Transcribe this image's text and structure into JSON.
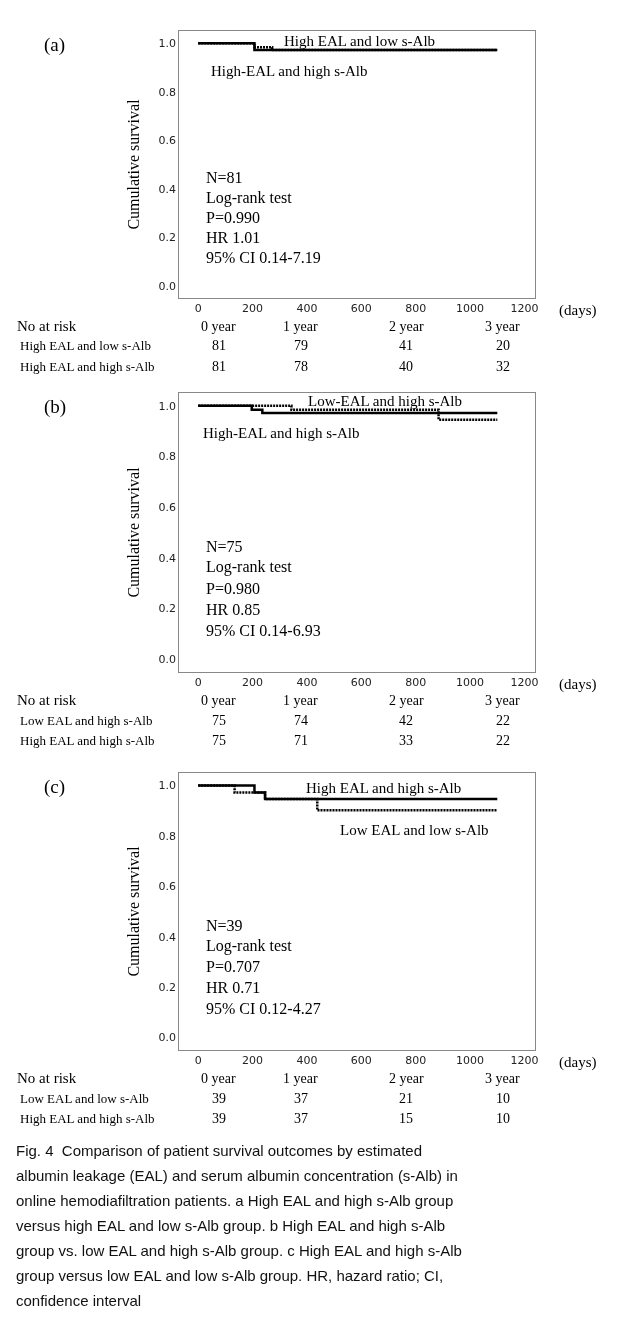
{
  "chart_data": [
    {
      "type": "step",
      "title": "(a)",
      "xlabel": "(days)",
      "ylabel": "Cumulative survival",
      "marker": "none",
      "xlim": [
        -70,
        1240
      ],
      "ylim": [
        -0.05,
        1.05
      ],
      "xticks": [
        0,
        200,
        400,
        600,
        800,
        1000,
        1200
      ],
      "yticks": [
        {
          "value": 0,
          "label": "0.0"
        },
        {
          "value": 0.2,
          "label": "0.2"
        },
        {
          "value": 0.4,
          "label": "0.4"
        },
        {
          "value": 0.6,
          "label": "0.6"
        },
        {
          "value": 0.8,
          "label": "0.8"
        },
        {
          "value": 1,
          "label": "1.0"
        }
      ],
      "series": [
        {
          "color": "#000000",
          "line_style": "solid",
          "x": [
            0,
            207,
            1100
          ],
          "values": [
            1.0,
            0.972,
            0.972
          ]
        },
        {
          "color": "#000000",
          "line_style": "dotted",
          "x": [
            0,
            207,
            272,
            1100
          ],
          "values": [
            1.0,
            0.983,
            0.972,
            0.972
          ]
        }
      ],
      "annotations": [
        "N=81",
        "Log-rank test",
        "P=0.990",
        "HR 1.01",
        "95% CI 0.14-7.19",
        "High EAL and low s-Alb",
        "High-EAL and high s-Alb",
        "No at risk",
        "0 year",
        "1 year",
        "2 year",
        "3 year",
        "High EAL and low s-Alb",
        "81",
        "79",
        "41",
        "20",
        "High EAL and high s-Alb",
        "81",
        "78",
        "40",
        "32"
      ]
    },
    {
      "type": "step",
      "title": "(b)",
      "xlabel": "(days)",
      "ylabel": "Cumulative survival",
      "marker": "none",
      "xlim": [
        -70,
        1240
      ],
      "ylim": [
        -0.05,
        1.05
      ],
      "xticks": [
        0,
        200,
        400,
        600,
        800,
        1000,
        1200
      ],
      "yticks": [
        {
          "value": 0,
          "label": "0.0"
        },
        {
          "value": 0.2,
          "label": "0.2"
        },
        {
          "value": 0.4,
          "label": "0.4"
        },
        {
          "value": 0.6,
          "label": "0.6"
        },
        {
          "value": 0.8,
          "label": "0.8"
        },
        {
          "value": 1,
          "label": "1.0"
        }
      ],
      "series": [
        {
          "color": "#000000",
          "line_style": "solid",
          "x": [
            0,
            197,
            236,
            1100
          ],
          "values": [
            1.0,
            0.984,
            0.971,
            0.971
          ]
        },
        {
          "color": "#000000",
          "line_style": "dotted",
          "x": [
            0,
            343,
            884,
            1100
          ],
          "values": [
            1.0,
            0.984,
            0.945,
            0.945
          ]
        }
      ],
      "annotations": [
        "N=75",
        "Log-rank test",
        "P=0.980",
        "HR 0.85",
        "95% CI 0.14-6.93",
        "Low-EAL and high s-Alb",
        "High-EAL and high s-Alb",
        "No at risk",
        "0 year",
        "1 year",
        "2 year",
        "3 year",
        "Low EAL and high s-Alb",
        "75",
        "74",
        "42",
        "22",
        "High EAL and high s-Alb",
        "75",
        "71",
        "33",
        "22"
      ]
    },
    {
      "type": "step",
      "title": "(c)",
      "xlabel": "(days)",
      "ylabel": "Cumulative survival",
      "marker": "none",
      "xlim": [
        -70,
        1240
      ],
      "ylim": [
        -0.05,
        1.05
      ],
      "xticks": [
        0,
        200,
        400,
        600,
        800,
        1000,
        1200
      ],
      "yticks": [
        {
          "value": 0,
          "label": "0.0"
        },
        {
          "value": 0.2,
          "label": "0.2"
        },
        {
          "value": 0.4,
          "label": "0.4"
        },
        {
          "value": 0.6,
          "label": "0.6"
        },
        {
          "value": 0.8,
          "label": "0.8"
        },
        {
          "value": 1,
          "label": "1.0"
        }
      ],
      "series": [
        {
          "color": "#000000",
          "line_style": "solid",
          "x": [
            0,
            207,
            246,
            1100
          ],
          "values": [
            1.0,
            0.973,
            0.947,
            0.947
          ]
        },
        {
          "color": "#000000",
          "line_style": "dotted",
          "x": [
            0,
            134,
            246,
            438,
            1100
          ],
          "values": [
            1.0,
            0.973,
            0.947,
            0.902,
            0.902
          ]
        }
      ],
      "annotations": [
        "N=39",
        "Log-rank test",
        "P=0.707",
        "HR 0.71",
        "95% CI 0.12-4.27",
        "High EAL and high s-Alb",
        "Low EAL and low s-Alb",
        "No at risk",
        "0 year",
        "1 year",
        "2 year",
        "3 year",
        "Low EAL and low s-Alb",
        "39",
        "37",
        "21",
        "10",
        "High EAL and high s-Alb",
        "39",
        "37",
        "15",
        "10",
        "Fig. 4  Comparison of patient survival outcomes by estimated",
        "albumin leakage (EAL) and serum albumin concentration (s-Alb) in",
        "online hemodiafiltration patients. a High EAL and high s-Alb group",
        "versus high EAL and low s-Alb group. b High EAL and high s-Alb",
        "group vs. low EAL and high s-Alb group. c High EAL and high s-Alb",
        "group versus low EAL and low s-Alb group. HR, hazard ratio; CI,",
        "confidence interval"
      ]
    }
  ]
}
